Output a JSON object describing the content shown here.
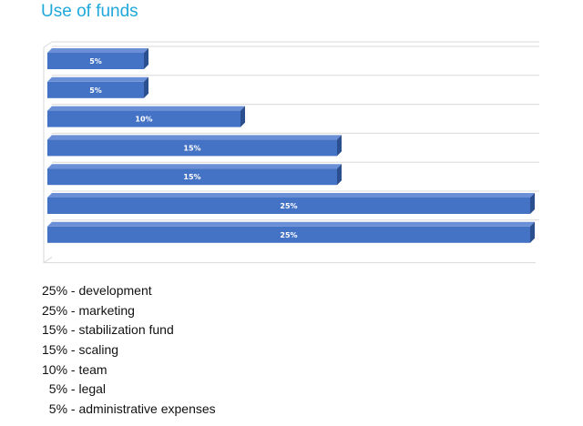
{
  "title": "Use of funds",
  "colors": {
    "title": "#1fa8dc",
    "bar_face": "#4472c4",
    "bar_top": "#6b8fd6",
    "bar_side": "#2c4f8f",
    "grid": "#d9d9d9",
    "label": "#ffffff"
  },
  "chart_data": {
    "type": "bar",
    "orientation": "horizontal",
    "style": "3d",
    "grid": true,
    "legend": "none",
    "xlim": [
      0,
      25
    ],
    "values": [
      5,
      5,
      10,
      15,
      15,
      25,
      25
    ],
    "data_labels": [
      "5%",
      "5%",
      "10%",
      "15%",
      "15%",
      "25%",
      "25%"
    ]
  },
  "legend_items": [
    "25% - development",
    "25% - marketing",
    "15% - stabilization fund",
    "15% - scaling",
    "10% - team",
    "  5% - legal",
    "  5% - administrative expenses"
  ]
}
